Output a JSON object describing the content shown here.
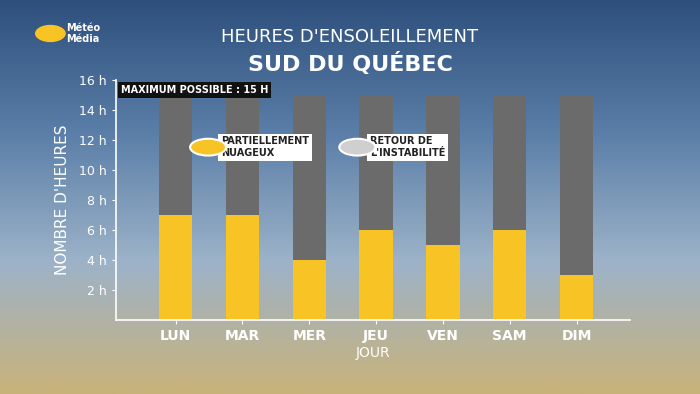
{
  "chart_data": {
    "type": "bar",
    "title": "HEURES D'ENSOLEILLEMENT",
    "subtitle": "SUD DU QUÉBEC",
    "logo": "Météo\nMédia",
    "x_label": "JOUR",
    "y_label": "NOMBRE D'HEURES",
    "categories": [
      "LUN",
      "MAR",
      "MER",
      "JEU",
      "VEN",
      "SAM",
      "DIM"
    ],
    "values": [
      7,
      7,
      4,
      6,
      5,
      6,
      3
    ],
    "color": "#f7c325",
    "max_possible": 15,
    "max_label": "MAXIMUM POSSIBLE : 15 H",
    "annotations": [
      "PARTIELLEMENT\nNUAGEUX",
      "RETOUR DE\nL'INSTABILITÉ"
    ],
    "ylim": [
      0,
      16
    ],
    "yticks": [
      {
        "value": 2,
        "label": "2 h"
      },
      {
        "value": 4,
        "label": "4 h"
      },
      {
        "value": 6,
        "label": "6 h"
      },
      {
        "value": 8,
        "label": "8 h"
      },
      {
        "value": 10,
        "label": "10 h"
      },
      {
        "value": 12,
        "label": "12 h"
      },
      {
        "value": 14,
        "label": "14 h"
      },
      {
        "value": 16,
        "label": "16 h"
      }
    ],
    "grid": false
  }
}
